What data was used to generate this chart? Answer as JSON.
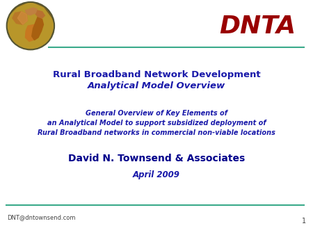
{
  "bg_color": "#ffffff",
  "line_color": "#3aaa8a",
  "dnta_color": "#990000",
  "title_color": "#1a1aaa",
  "body_color": "#1a1aaa",
  "author_color": "#00008b",
  "date_color": "#1a1aaa",
  "footer_color": "#444444",
  "page_num_color": "#444444",
  "dnta_text": "DNTA",
  "title_line1": "Rural Broadband Network Development",
  "title_line2": "Analytical Model Overview",
  "body_line1": "General Overview of Key Elements of",
  "body_line2": "an Analytical Model to support subsidized deployment of",
  "body_line3": "Rural Broadband networks in commercial non-viable locations",
  "author_text": "David N. Townsend & Associates",
  "date_text": "April 2009",
  "footer_text": "DNT@dntownsend.com",
  "page_number": "1"
}
